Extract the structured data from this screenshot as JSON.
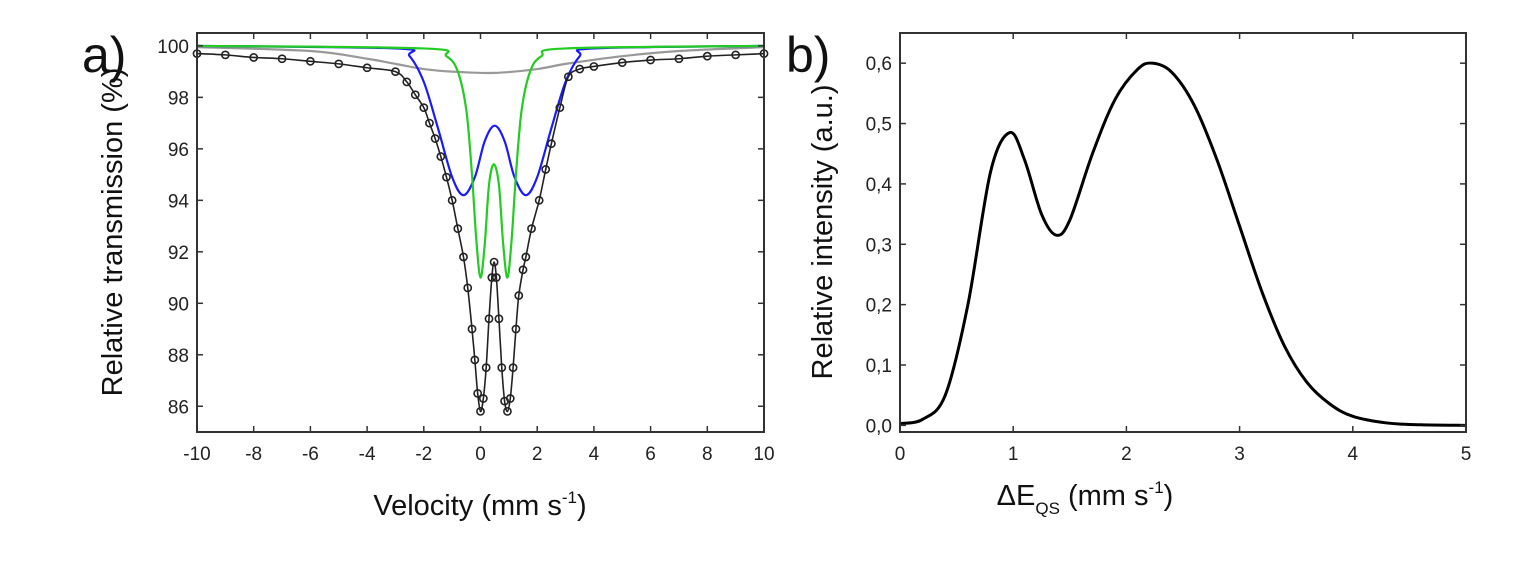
{
  "chart_data": [
    {
      "panel_label": "a)",
      "type": "line",
      "xlabel": "Velocity (mm s",
      "xlabel_sup": "-1",
      "xlabel_end": ")",
      "ylabel": "Relative transmission (%)",
      "xlim": [
        -10,
        10
      ],
      "ylim": [
        85,
        100.5
      ],
      "xticks": [
        "-10",
        "-8",
        "-6",
        "-4",
        "-2",
        "0",
        "2",
        "4",
        "6",
        "8",
        "10"
      ],
      "yticks": [
        "86",
        "88",
        "90",
        "92",
        "94",
        "96",
        "98",
        "100"
      ],
      "grid": false,
      "colors": {
        "data": "#222222",
        "component_green": "#22cc22",
        "component_blue": "#1a1aff",
        "component_gray": "#999999"
      },
      "series": [
        {
          "role": "experimental points with fit",
          "color": "#222222",
          "markers": true,
          "points": [
            [
              -10,
              99.7
            ],
            [
              -9,
              99.65
            ],
            [
              -8,
              99.55
            ],
            [
              -7,
              99.5
            ],
            [
              -6,
              99.4
            ],
            [
              -5,
              99.3
            ],
            [
              -4,
              99.15
            ],
            [
              -3,
              99.0
            ],
            [
              -2.6,
              98.6
            ],
            [
              -2.3,
              98.1
            ],
            [
              -2.0,
              97.6
            ],
            [
              -1.8,
              97.0
            ],
            [
              -1.6,
              96.4
            ],
            [
              -1.4,
              95.7
            ],
            [
              -1.2,
              94.9
            ],
            [
              -1.0,
              94.0
            ],
            [
              -0.8,
              92.9
            ],
            [
              -0.6,
              91.8
            ],
            [
              -0.45,
              90.6
            ],
            [
              -0.3,
              89.0
            ],
            [
              -0.2,
              87.8
            ],
            [
              -0.1,
              86.5
            ],
            [
              0,
              85.8
            ],
            [
              0.1,
              86.3
            ],
            [
              0.2,
              87.5
            ],
            [
              0.3,
              89.4
            ],
            [
              0.4,
              91.0
            ],
            [
              0.48,
              91.6
            ],
            [
              0.56,
              91.0
            ],
            [
              0.65,
              89.4
            ],
            [
              0.75,
              87.5
            ],
            [
              0.85,
              86.2
            ],
            [
              0.95,
              85.8
            ],
            [
              1.05,
              86.3
            ],
            [
              1.15,
              87.5
            ],
            [
              1.25,
              89.0
            ],
            [
              1.35,
              90.3
            ],
            [
              1.5,
              91.3
            ],
            [
              1.6,
              91.8
            ],
            [
              1.8,
              92.9
            ],
            [
              2.07,
              94.0
            ],
            [
              2.3,
              95.2
            ],
            [
              2.5,
              96.2
            ],
            [
              2.8,
              97.6
            ],
            [
              3.1,
              98.8
            ],
            [
              3.5,
              99.1
            ],
            [
              4,
              99.2
            ],
            [
              5,
              99.35
            ],
            [
              6,
              99.45
            ],
            [
              7,
              99.5
            ],
            [
              8,
              99.6
            ],
            [
              9,
              99.65
            ],
            [
              10,
              99.7
            ]
          ]
        },
        {
          "role": "component",
          "color": "#22cc22",
          "points": [
            [
              -10,
              100
            ],
            [
              -2,
              99.9
            ],
            [
              -1.2,
              99.6
            ],
            [
              -0.8,
              99.0
            ],
            [
              -0.5,
              97.5
            ],
            [
              -0.3,
              95.0
            ],
            [
              -0.15,
              92.5
            ],
            [
              0,
              91
            ],
            [
              0.15,
              92.3
            ],
            [
              0.3,
              94.6
            ],
            [
              0.47,
              95.4
            ],
            [
              0.65,
              94.6
            ],
            [
              0.8,
              92.3
            ],
            [
              0.95,
              91
            ],
            [
              1.1,
              92.5
            ],
            [
              1.25,
              95
            ],
            [
              1.45,
              97.5
            ],
            [
              1.75,
              99.0
            ],
            [
              2.15,
              99.6
            ],
            [
              3,
              99.9
            ],
            [
              10,
              100
            ]
          ]
        },
        {
          "role": "component",
          "color": "#1a1aff",
          "points": [
            [
              -10,
              100
            ],
            [
              -3,
              99.9
            ],
            [
              -2.5,
              99.6
            ],
            [
              -2,
              98.6
            ],
            [
              -1.5,
              96.8
            ],
            [
              -1.0,
              94.9
            ],
            [
              -0.6,
              94.2
            ],
            [
              -0.2,
              94.9
            ],
            [
              0.15,
              96.3
            ],
            [
              0.5,
              96.9
            ],
            [
              0.85,
              96.3
            ],
            [
              1.2,
              94.9
            ],
            [
              1.6,
              94.2
            ],
            [
              2.0,
              94.9
            ],
            [
              2.5,
              96.8
            ],
            [
              3.0,
              98.6
            ],
            [
              3.5,
              99.6
            ],
            [
              4,
              99.9
            ],
            [
              10,
              100
            ]
          ]
        },
        {
          "role": "component",
          "color": "#999999",
          "points": [
            [
              -10,
              99.95
            ],
            [
              -6,
              99.8
            ],
            [
              -4,
              99.5
            ],
            [
              -3,
              99.3
            ],
            [
              -2,
              99.1
            ],
            [
              -1,
              99.0
            ],
            [
              0.5,
              98.95
            ],
            [
              2,
              99.1
            ],
            [
              3,
              99.3
            ],
            [
              5,
              99.6
            ],
            [
              7,
              99.8
            ],
            [
              10,
              99.95
            ]
          ]
        }
      ]
    },
    {
      "panel_label": "b)",
      "type": "line",
      "xlabel": "ΔE",
      "xlabel_sub": "QS",
      "xlabel_rest": " (mm s",
      "xlabel_sup": "-1",
      "xlabel_end": ")",
      "ylabel": "Relative intensity (a.u.)",
      "xlim": [
        0,
        5
      ],
      "ylim": [
        -0.011,
        0.65
      ],
      "xticks": [
        "0",
        "1",
        "2",
        "3",
        "4",
        "5"
      ],
      "yticks": [
        "0,0",
        "0,1",
        "0,2",
        "0,3",
        "0,4",
        "0,5",
        "0,6"
      ],
      "grid": false,
      "series": [
        {
          "color": "#000000",
          "points": [
            [
              0,
              0.003
            ],
            [
              0.2,
              0.01
            ],
            [
              0.4,
              0.05
            ],
            [
              0.6,
              0.2
            ],
            [
              0.8,
              0.42
            ],
            [
              0.97,
              0.485
            ],
            [
              1.1,
              0.44
            ],
            [
              1.25,
              0.35
            ],
            [
              1.38,
              0.315
            ],
            [
              1.5,
              0.34
            ],
            [
              1.7,
              0.45
            ],
            [
              1.9,
              0.54
            ],
            [
              2.1,
              0.59
            ],
            [
              2.23,
              0.6
            ],
            [
              2.4,
              0.585
            ],
            [
              2.6,
              0.53
            ],
            [
              2.8,
              0.44
            ],
            [
              3.0,
              0.33
            ],
            [
              3.2,
              0.22
            ],
            [
              3.4,
              0.13
            ],
            [
              3.6,
              0.07
            ],
            [
              3.8,
              0.035
            ],
            [
              4.0,
              0.015
            ],
            [
              4.3,
              0.004
            ],
            [
              4.6,
              0.001
            ],
            [
              5,
              0
            ]
          ]
        }
      ]
    }
  ]
}
